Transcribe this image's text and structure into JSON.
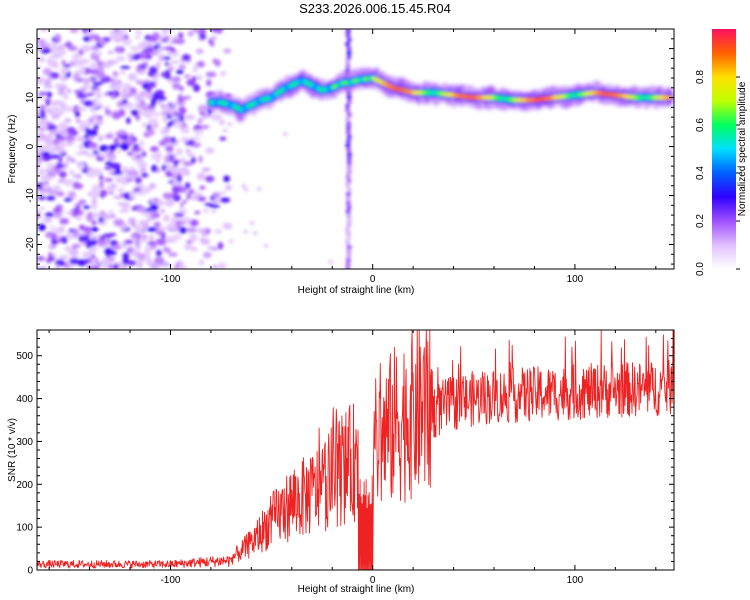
{
  "title": "S233.2026.006.15.45.R04",
  "chart_data": [
    {
      "type": "heatmap",
      "xlabel": "Height of straight line (km)",
      "ylabel": "Frequency (Hz)",
      "xlim": [
        -166,
        149
      ],
      "ylim": [
        -25,
        24
      ],
      "xticks": [
        -100,
        0,
        100
      ],
      "yticks": [
        -20,
        -10,
        0,
        10,
        20
      ],
      "colorbar": {
        "label": "Normalized spectral amplitude",
        "range": [
          0,
          1
        ],
        "ticks": [
          "0.0",
          "0.2",
          "0.4",
          "0.6",
          "0.8"
        ],
        "tick_values": [
          0.0,
          0.2,
          0.4,
          0.6,
          0.8
        ],
        "stops": [
          "#ffffff",
          "#e0c0ff",
          "#a050ff",
          "#3000ff",
          "#0060ff",
          "#00e0ff",
          "#00ff60",
          "#c0ff00",
          "#ffe000",
          "#ff6000",
          "#ff1060"
        ]
      },
      "noise_region_x": [
        -166,
        -75
      ],
      "vertical_streak_x": -12,
      "signal_trace": {
        "x": [
          -80,
          -75,
          -70,
          -65,
          -60,
          -55,
          -50,
          -45,
          -40,
          -35,
          -30,
          -25,
          -20,
          -15,
          -12,
          -8,
          0,
          5,
          10,
          20,
          30,
          40,
          50,
          60,
          70,
          80,
          90,
          100,
          110,
          120,
          130,
          140,
          147
        ],
        "y": [
          9,
          9,
          8.5,
          7.5,
          8.5,
          9.5,
          10,
          11.5,
          12.5,
          13.5,
          12.5,
          11.5,
          12,
          13,
          13,
          13.5,
          14,
          13,
          12,
          11,
          11,
          10.5,
          10,
          10,
          9.5,
          9.5,
          10,
          10.5,
          11,
          10.5,
          10,
          10,
          10
        ]
      }
    },
    {
      "type": "line",
      "xlabel": "Height of straight line (km)",
      "ylabel": "SNR (10 * v/v)",
      "xlim": [
        -166,
        149
      ],
      "ylim": [
        0,
        560
      ],
      "xticks": [
        -100,
        0,
        100
      ],
      "yticks": [
        0,
        100,
        200,
        300,
        400,
        500
      ],
      "color": "#ee2222",
      "envelope": {
        "x": [
          -166,
          -100,
          -70,
          -60,
          -50,
          -40,
          -30,
          -20,
          -10,
          0,
          10,
          20,
          30,
          40,
          50,
          60,
          80,
          100,
          120,
          149
        ],
        "y": [
          15,
          15,
          25,
          60,
          110,
          150,
          170,
          210,
          240,
          270,
          320,
          355,
          375,
          395,
          405,
          410,
          415,
          420,
          425,
          430
        ]
      },
      "notable_peaks": [
        {
          "x": -18,
          "y": 375
        },
        {
          "x": 113,
          "y": 560
        },
        {
          "x": 146,
          "y": 535
        }
      ],
      "gap_oscillation_x": [
        -7,
        0
      ]
    }
  ]
}
